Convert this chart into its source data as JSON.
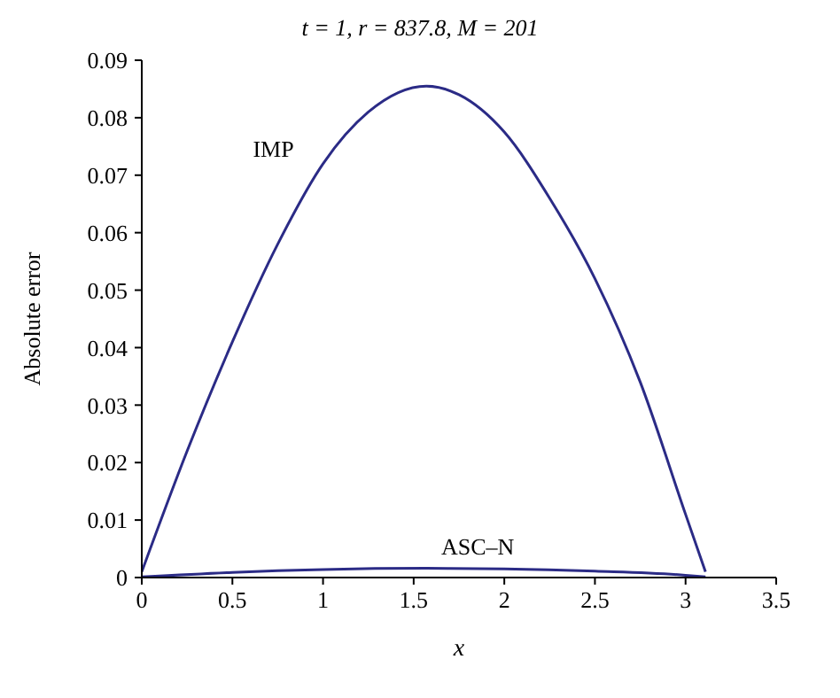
{
  "chart_data": {
    "type": "line",
    "title": "t = 1, r = 837.8, M = 201",
    "xlabel": "x",
    "ylabel": "Absolute error",
    "xlim": [
      0,
      3.5
    ],
    "xticks": [
      0,
      0.5,
      1,
      1.5,
      2,
      2.5,
      3,
      3.5
    ],
    "ylim": [
      0,
      0.09
    ],
    "yticks": [
      0,
      0.01,
      0.02,
      0.03,
      0.04,
      0.05,
      0.06,
      0.07,
      0.08,
      0.09
    ],
    "grid": false,
    "legend": false,
    "marker": "none",
    "line_style": "solid",
    "series": [
      {
        "name": "IMP",
        "color": "#2b2b86",
        "x": [
          0,
          0.25,
          0.5,
          0.75,
          1,
          1.25,
          1.57,
          1.75,
          2,
          2.25,
          2.5,
          2.75,
          3,
          3.11
        ],
        "values": [
          0.001,
          0.022,
          0.041,
          0.058,
          0.072,
          0.081,
          0.0855,
          0.084,
          0.0775,
          0.066,
          0.052,
          0.034,
          0.011,
          0.001
        ]
      },
      {
        "name": "ASC–N",
        "color": "#2b2b86",
        "x": [
          0,
          0.5,
          1,
          1.57,
          2,
          2.5,
          3,
          3.11
        ],
        "values": [
          0.0001,
          0.0009,
          0.0014,
          0.0016,
          0.0015,
          0.0011,
          0.0004,
          0.0001
        ]
      }
    ]
  }
}
